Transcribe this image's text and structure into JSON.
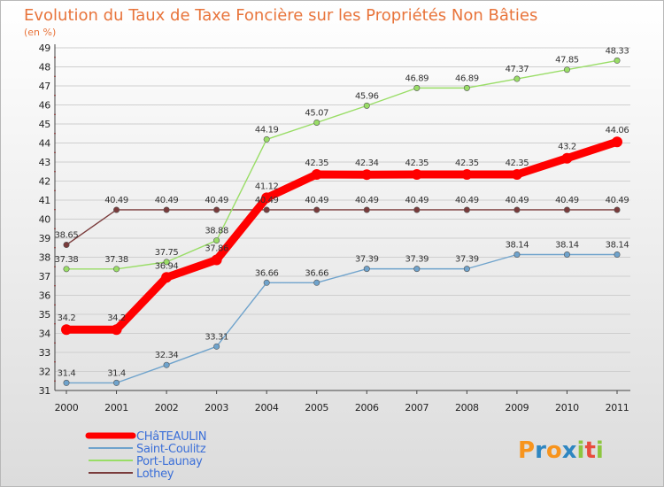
{
  "title": "Evolution du Taux de Taxe Foncière sur les Propriétés Non Bâties",
  "subtitle": "(en %)",
  "logo": {
    "letters": [
      "P",
      "r",
      "o",
      "x",
      "i",
      "t",
      "i"
    ],
    "colors": [
      "#f7941d",
      "#2e86c1",
      "#f7941d",
      "#2e86c1",
      "#8dc63f",
      "#e84c3d",
      "#8dc63f"
    ]
  },
  "chart_data": {
    "type": "line",
    "title": "Evolution du Taux de Taxe Foncière sur les Propriétés Non Bâties",
    "ylabel": "(en %)",
    "xlabel": "",
    "x": [
      "2000",
      "2001",
      "2002",
      "2003",
      "2004",
      "2005",
      "2006",
      "2007",
      "2008",
      "2009",
      "2010",
      "2011"
    ],
    "ylim": [
      31,
      49
    ],
    "yticks": [
      31,
      32,
      33,
      34,
      35,
      36,
      37,
      38,
      39,
      40,
      41,
      42,
      43,
      44,
      45,
      46,
      47,
      48,
      49
    ],
    "grid": "horizontal",
    "legend_position": "bottom-left",
    "series": [
      {
        "name": "CHâTEAULIN",
        "color": "#ff0000",
        "emphasis": true,
        "values": [
          34.2,
          34.2,
          36.94,
          37.86,
          41.12,
          42.35,
          42.34,
          42.35,
          42.35,
          42.35,
          43.2,
          44.06
        ],
        "labels": [
          "34.2",
          "34.2",
          "36.94",
          "37.86",
          "41.12",
          "42.35",
          "42.34",
          "42.35",
          "42.35",
          "42.35",
          "43.2",
          "44.06"
        ]
      },
      {
        "name": "Saint-Coulitz",
        "color": "#6fa3cc",
        "values": [
          31.4,
          31.4,
          32.34,
          33.31,
          36.66,
          36.66,
          37.39,
          37.39,
          37.39,
          38.14,
          38.14,
          38.14
        ],
        "labels": [
          "31.4",
          "31.4",
          "32.34",
          "33.31",
          "36.66",
          "36.66",
          "37.39",
          "37.39",
          "37.39",
          "38.14",
          "38.14",
          "38.14"
        ]
      },
      {
        "name": "Port-Launay",
        "color": "#99dd66",
        "values": [
          37.38,
          37.38,
          37.75,
          38.88,
          44.19,
          45.07,
          45.96,
          46.89,
          46.89,
          47.37,
          47.85,
          48.33
        ],
        "labels": [
          "37.38",
          "37.38",
          "37.75",
          "38.88",
          "44.19",
          "45.07",
          "45.96",
          "46.89",
          "46.89",
          "47.37",
          "47.85",
          "48.33"
        ]
      },
      {
        "name": "Lothey",
        "color": "#7a3b3b",
        "values": [
          38.65,
          40.49,
          40.49,
          40.49,
          40.49,
          40.49,
          40.49,
          40.49,
          40.49,
          40.49,
          40.49,
          40.49
        ],
        "labels": [
          "38.65",
          "40.49",
          "40.49",
          "40.49",
          "40.49",
          "40.49",
          "40.49",
          "40.49",
          "40.49",
          "40.49",
          "40.49",
          "40.49"
        ]
      }
    ]
  }
}
